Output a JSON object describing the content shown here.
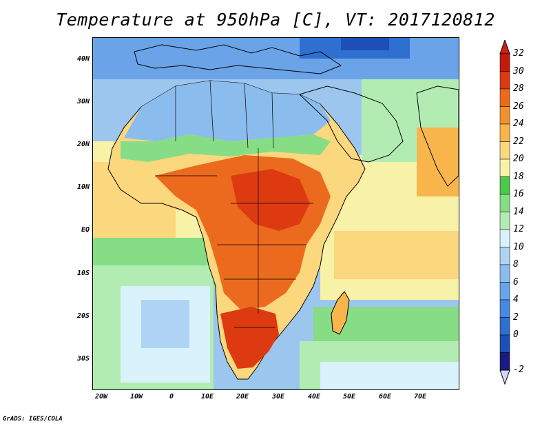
{
  "title": "Temperature at 950hPa [C], VT: 2017120812",
  "credit": "GrADS: IGES/COLA",
  "map": {
    "lat_ticks": [
      "40N",
      "30N",
      "20N",
      "10N",
      "EQ",
      "10S",
      "20S",
      "30S"
    ],
    "lon_ticks": [
      "20W",
      "10W",
      "0",
      "10E",
      "20E",
      "30E",
      "40E",
      "50E",
      "60E",
      "70E"
    ],
    "extent": {
      "lon": [
        -23,
        80
      ],
      "lat": [
        -37,
        45
      ]
    }
  },
  "colorbar": {
    "labels": [
      "-2",
      "0",
      "2",
      "4",
      "6",
      "8",
      "10",
      "12",
      "14",
      "16",
      "18",
      "20",
      "22",
      "24",
      "26",
      "28",
      "30",
      "32"
    ],
    "colors": [
      "#1a1a80",
      "#1e4fb6",
      "#2f6fd0",
      "#4689df",
      "#6aa3e8",
      "#8bbcee",
      "#aed3f4",
      "#d9f2fb",
      "#b3ecb3",
      "#86dd85",
      "#4cc84a",
      "#f8f1a8",
      "#fbd77e",
      "#f7b54c",
      "#f4912e",
      "#ec6a1e",
      "#dd3a12",
      "#c41a0c"
    ],
    "min_tri_color": "#d8d4f5",
    "max_tri_color": "#cc1f1a"
  }
}
